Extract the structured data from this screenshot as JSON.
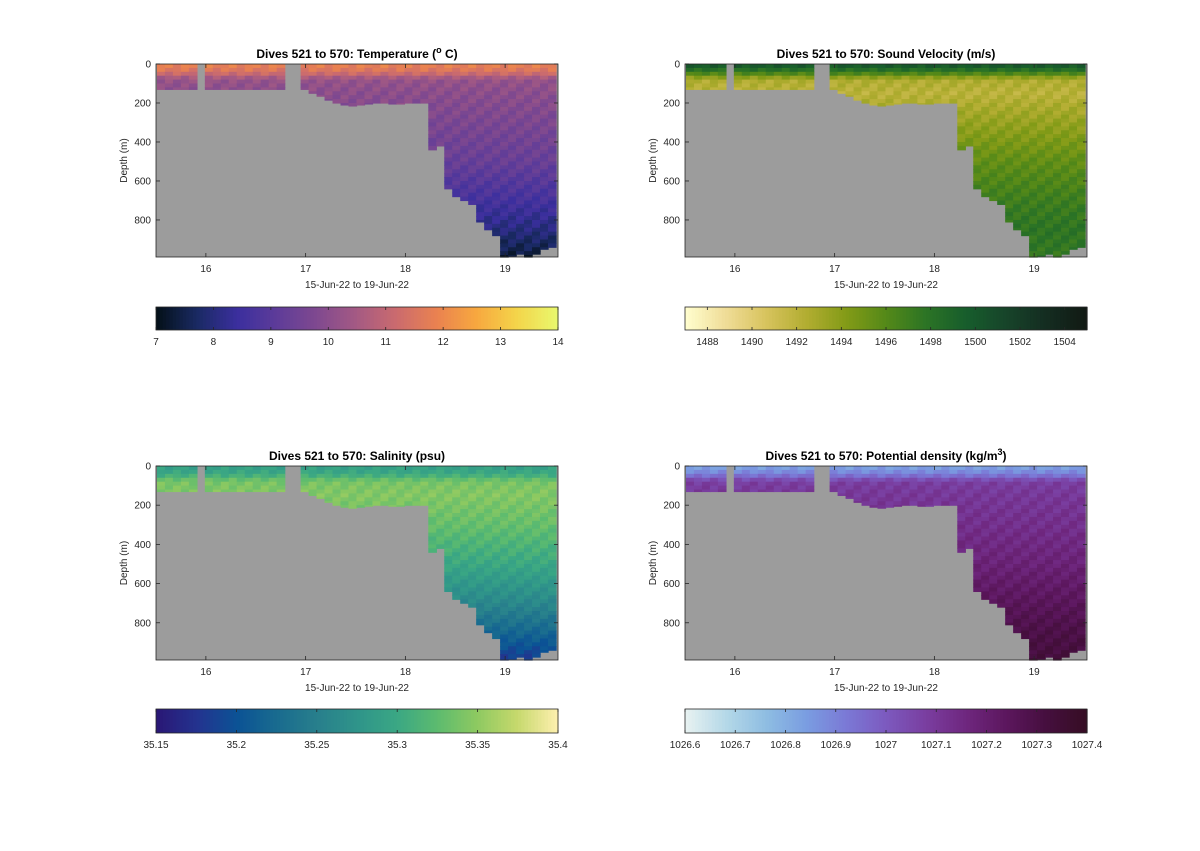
{
  "figure": {
    "background": "#ffffff",
    "land_color": "#9c9c9c"
  },
  "chart_data": [
    {
      "type": "heatmap",
      "title": "Dives 521 to 570: Temperature (",
      "title_sup": "o",
      "title_tail": " C)",
      "xlabel": "15-Jun-22 to 19-Jun-22",
      "ylabel": "Depth (m)",
      "xlim": [
        15.5,
        19.53
      ],
      "ylim": [
        0,
        990
      ],
      "y_reversed": true,
      "xticks": [
        16,
        17,
        18,
        19
      ],
      "yticks": [
        0,
        200,
        400,
        600,
        800
      ],
      "colorbar": {
        "colormap": "thermal",
        "range": [
          7,
          14
        ],
        "ticks": [
          "7",
          "8",
          "9",
          "10",
          "11",
          "12",
          "13",
          "14"
        ],
        "tick_values": [
          7,
          8,
          9,
          10,
          11,
          12,
          13,
          14
        ]
      },
      "profile": [
        {
          "depth": 0,
          "value": 11.9
        },
        {
          "depth": 40,
          "value": 11.5
        },
        {
          "depth": 80,
          "value": 10.2
        },
        {
          "depth": 150,
          "value": 10.0
        },
        {
          "depth": 300,
          "value": 9.7
        },
        {
          "depth": 500,
          "value": 9.3
        },
        {
          "depth": 700,
          "value": 8.6
        },
        {
          "depth": 850,
          "value": 8.0
        },
        {
          "depth": 990,
          "value": 7.3
        }
      ]
    },
    {
      "type": "heatmap",
      "title": "Dives 521 to 570: Sound Velocity (m/s)",
      "xlabel": "15-Jun-22 to 19-Jun-22",
      "ylabel": "Depth (m)",
      "xlim": [
        15.5,
        19.53
      ],
      "ylim": [
        0,
        990
      ],
      "y_reversed": true,
      "xticks": [
        16,
        17,
        18,
        19
      ],
      "yticks": [
        0,
        200,
        400,
        600,
        800
      ],
      "colorbar": {
        "colormap": "speed",
        "range": [
          1487,
          1505
        ],
        "ticks": [
          "1488",
          "1490",
          "1492",
          "1494",
          "1496",
          "1498",
          "1500",
          "1502",
          "1504"
        ],
        "tick_values": [
          1488,
          1490,
          1492,
          1494,
          1496,
          1498,
          1500,
          1502,
          1504
        ]
      },
      "profile": [
        {
          "depth": 0,
          "value": 1500.5
        },
        {
          "depth": 40,
          "value": 1497.5
        },
        {
          "depth": 80,
          "value": 1492.5
        },
        {
          "depth": 150,
          "value": 1492.0
        },
        {
          "depth": 300,
          "value": 1493.5
        },
        {
          "depth": 500,
          "value": 1495.5
        },
        {
          "depth": 700,
          "value": 1497.0
        },
        {
          "depth": 850,
          "value": 1497.8
        },
        {
          "depth": 990,
          "value": 1497.5
        }
      ]
    },
    {
      "type": "heatmap",
      "title": "Dives 521 to 570: Salinity (psu)",
      "xlabel": "15-Jun-22 to 19-Jun-22",
      "ylabel": "Depth (m)",
      "xlim": [
        15.5,
        19.53
      ],
      "ylim": [
        0,
        990
      ],
      "y_reversed": true,
      "xticks": [
        16,
        17,
        18,
        19
      ],
      "yticks": [
        0,
        200,
        400,
        600,
        800
      ],
      "colorbar": {
        "colormap": "haline",
        "range": [
          35.15,
          35.4
        ],
        "ticks": [
          "35.15",
          "35.2",
          "35.25",
          "35.3",
          "35.35",
          "35.4"
        ],
        "tick_values": [
          35.15,
          35.2,
          35.25,
          35.3,
          35.35,
          35.4
        ]
      },
      "profile": [
        {
          "depth": 0,
          "value": 35.29
        },
        {
          "depth": 40,
          "value": 35.3
        },
        {
          "depth": 80,
          "value": 35.34
        },
        {
          "depth": 150,
          "value": 35.345
        },
        {
          "depth": 300,
          "value": 35.33
        },
        {
          "depth": 500,
          "value": 35.3
        },
        {
          "depth": 700,
          "value": 35.26
        },
        {
          "depth": 850,
          "value": 35.22
        },
        {
          "depth": 990,
          "value": 35.18
        }
      ]
    },
    {
      "type": "heatmap",
      "title": "Dives 521 to 570: Potential density (kg/m",
      "title_sup": "3",
      "title_tail": ")",
      "xlabel": "15-Jun-22 to 19-Jun-22",
      "ylabel": "Depth (m)",
      "xlim": [
        15.5,
        19.53
      ],
      "ylim": [
        0,
        990
      ],
      "y_reversed": true,
      "xticks": [
        16,
        17,
        18,
        19
      ],
      "yticks": [
        0,
        200,
        400,
        600,
        800
      ],
      "colorbar": {
        "colormap": "dense",
        "range": [
          1026.6,
          1027.4
        ],
        "ticks": [
          "1026.6",
          "1026.7",
          "1026.8",
          "1026.9",
          "1027",
          "1027.1",
          "1027.2",
          "1027.3",
          "1027.4"
        ],
        "tick_values": [
          1026.6,
          1026.7,
          1026.8,
          1026.9,
          1027.0,
          1027.1,
          1027.2,
          1027.3,
          1027.4
        ]
      },
      "profile": [
        {
          "depth": 0,
          "value": 1026.82
        },
        {
          "depth": 40,
          "value": 1026.9
        },
        {
          "depth": 80,
          "value": 1027.08
        },
        {
          "depth": 150,
          "value": 1027.1
        },
        {
          "depth": 300,
          "value": 1027.13
        },
        {
          "depth": 500,
          "value": 1027.18
        },
        {
          "depth": 700,
          "value": 1027.25
        },
        {
          "depth": 850,
          "value": 1027.3
        },
        {
          "depth": 990,
          "value": 1027.33
        }
      ]
    }
  ],
  "dive_sections": {
    "x": [
      15.55,
      15.63,
      15.71,
      15.79,
      15.87,
      15.95,
      16.03,
      16.11,
      16.19,
      16.27,
      16.35,
      16.43,
      16.51,
      16.59,
      16.67,
      16.75,
      16.83,
      16.91,
      16.99,
      17.07,
      17.15,
      17.23,
      17.31,
      17.39,
      17.47,
      17.55,
      17.63,
      17.71,
      17.79,
      17.87,
      17.95,
      18.03,
      18.11,
      18.19,
      18.27,
      18.35,
      18.43,
      18.51,
      18.59,
      18.67,
      18.75,
      18.83,
      18.91,
      18.99,
      19.07,
      19.15,
      19.23,
      19.31,
      19.39,
      19.47
    ],
    "max_depth": [
      130,
      130,
      130,
      130,
      130,
      0,
      130,
      130,
      130,
      130,
      130,
      130,
      130,
      130,
      130,
      130,
      0,
      0,
      130,
      150,
      165,
      185,
      200,
      210,
      215,
      210,
      205,
      200,
      200,
      205,
      205,
      200,
      200,
      200,
      440,
      420,
      640,
      680,
      700,
      720,
      810,
      850,
      880,
      990,
      985,
      975,
      990,
      975,
      950,
      940
    ]
  }
}
